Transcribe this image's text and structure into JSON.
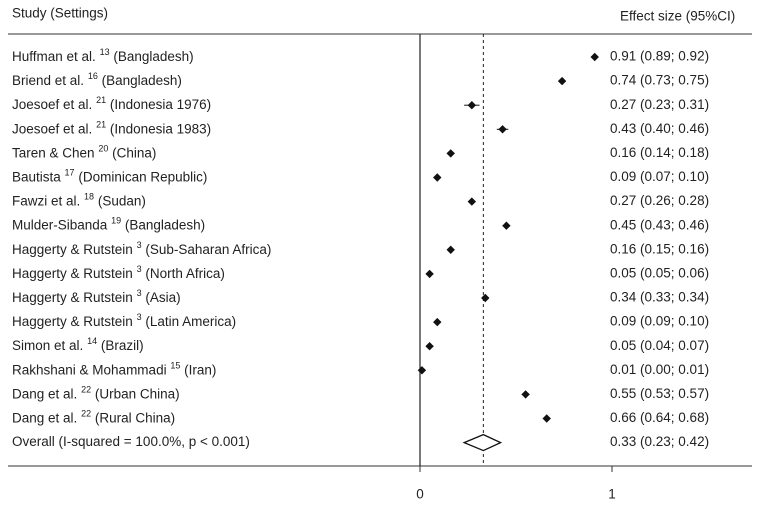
{
  "chart_data": {
    "type": "forest",
    "column_headers": {
      "study": "Study (Settings)",
      "effect": "Effect size (95%CI)"
    },
    "studies": [
      {
        "name": "Huffman et al.",
        "ref": "13",
        "setting": "(Bangladesh)"
      },
      {
        "name": "Briend et al.",
        "ref": "16",
        "setting": "(Bangladesh)"
      },
      {
        "name": "Joesoef et al.",
        "ref": "21",
        "setting": "(Indonesia 1976)"
      },
      {
        "name": "Joesoef et al.",
        "ref": "21",
        "setting": "(Indonesia 1983)"
      },
      {
        "name": "Taren & Chen",
        "ref": "20",
        "setting": "(China)"
      },
      {
        "name": "Bautista",
        "ref": "17",
        "setting": "(Dominican Republic)"
      },
      {
        "name": "Fawzi et al.",
        "ref": "18",
        "setting": "(Sudan)"
      },
      {
        "name": "Mulder-Sibanda",
        "ref": "19",
        "setting": "(Bangladesh)"
      },
      {
        "name": "Haggerty & Rutstein",
        "ref": "3",
        "setting": "(Sub-Saharan Africa)"
      },
      {
        "name": "Haggerty & Rutstein",
        "ref": "3",
        "setting": "(North Africa)"
      },
      {
        "name": "Haggerty & Rutstein",
        "ref": "3",
        "setting": "(Asia)"
      },
      {
        "name": "Haggerty & Rutstein",
        "ref": "3",
        "setting": "(Latin America)"
      },
      {
        "name": "Simon et al.",
        "ref": "14",
        "setting": "(Brazil)"
      },
      {
        "name": "Rakhshani & Mohammadi",
        "ref": "15",
        "setting": "(Iran)"
      },
      {
        "name": "Dang et al.",
        "ref": "22",
        "setting": "(Urban China)"
      },
      {
        "name": "Dang et al.",
        "ref": "22",
        "setting": "(Rural China)"
      }
    ],
    "values": [
      0.91,
      0.74,
      0.27,
      0.43,
      0.16,
      0.09,
      0.27,
      0.45,
      0.16,
      0.05,
      0.34,
      0.09,
      0.05,
      0.01,
      0.55,
      0.66
    ],
    "lower": [
      0.89,
      0.73,
      0.23,
      0.4,
      0.14,
      0.07,
      0.26,
      0.43,
      0.15,
      0.05,
      0.33,
      0.09,
      0.04,
      0.0,
      0.53,
      0.64
    ],
    "upper": [
      0.92,
      0.75,
      0.31,
      0.46,
      0.18,
      0.1,
      0.28,
      0.46,
      0.16,
      0.06,
      0.34,
      0.1,
      0.07,
      0.01,
      0.57,
      0.68
    ],
    "value_labels": [
      "0.91 (0.89; 0.92)",
      "0.74 (0.73; 0.75)",
      "0.27 (0.23; 0.31)",
      "0.43 (0.40; 0.46)",
      "0.16 (0.14; 0.18)",
      "0.09 (0.07; 0.10)",
      "0.27 (0.26; 0.28)",
      "0.45 (0.43; 0.46)",
      "0.16 (0.15; 0.16)",
      "0.05 (0.05; 0.06)",
      "0.34 (0.33; 0.34)",
      "0.09 (0.09; 0.10)",
      "0.05 (0.04; 0.07)",
      "0.01 (0.00; 0.01)",
      "0.55 (0.53; 0.57)",
      "0.66 (0.64; 0.68)"
    ],
    "overall": {
      "label": "Overall  (I-squared = 100.0%, p < 0.001)",
      "value": 0.33,
      "lower": 0.23,
      "upper": 0.42,
      "value_label": "0.33 (0.23; 0.42)"
    },
    "xlim": [
      0,
      1
    ],
    "xticks": [
      0,
      1
    ],
    "color": "#111111"
  }
}
